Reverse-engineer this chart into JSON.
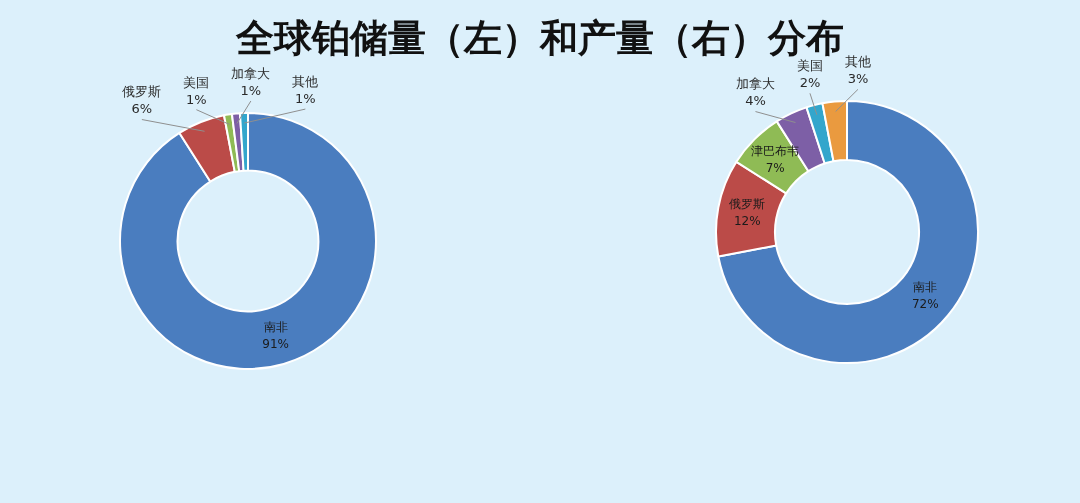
{
  "chart_data": [
    {
      "type": "donut",
      "title": "全球铂储量（左）和产量（右）分布",
      "categories": [
        "南非",
        "俄罗斯",
        "美国",
        "加拿大",
        "其他"
      ],
      "values": [
        91,
        6,
        1,
        1,
        1
      ],
      "colors": [
        "#4a7dbf",
        "#bb4b48",
        "#8fbb55",
        "#7d5fa6",
        "#33a6cc"
      ],
      "value_labels": [
        "91%",
        "6%",
        "1%",
        "1%",
        "1%"
      ]
    },
    {
      "type": "donut",
      "categories": [
        "南非",
        "俄罗斯",
        "津巴布韦",
        "加拿大",
        "美国",
        "其他"
      ],
      "values": [
        72,
        12,
        7,
        4,
        2,
        3
      ],
      "colors": [
        "#4a7dbf",
        "#bb4b48",
        "#8fbb55",
        "#7d5fa6",
        "#33a6cc",
        "#ea9a3f"
      ],
      "value_labels": [
        "72%",
        "12%",
        "7%",
        "4%",
        "2%",
        "3%"
      ]
    }
  ]
}
